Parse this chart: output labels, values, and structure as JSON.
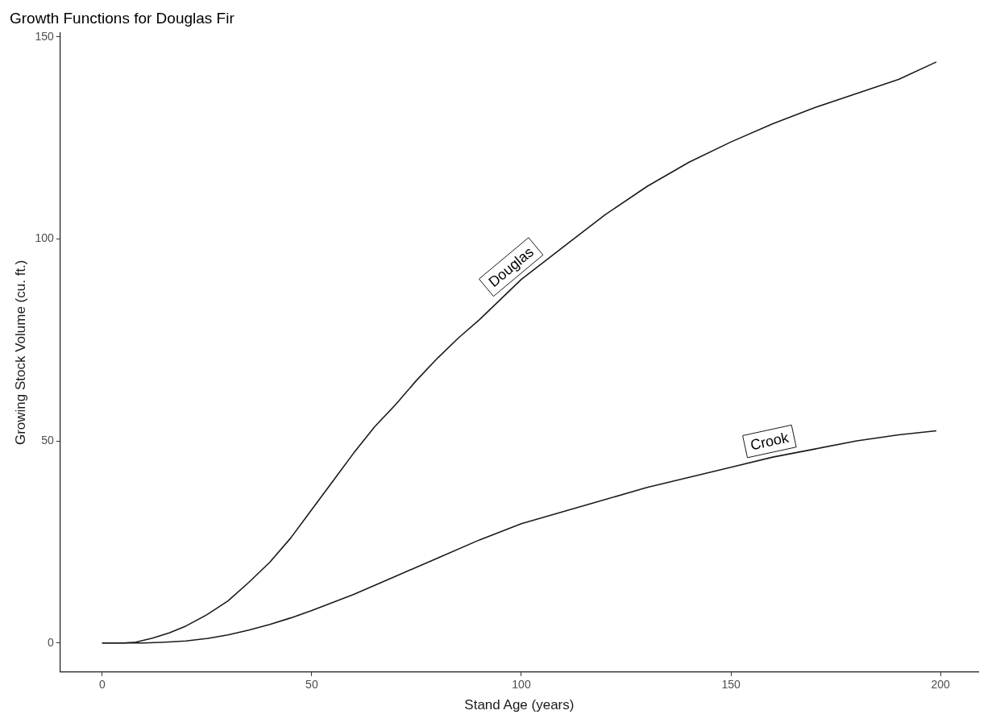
{
  "chart_data": {
    "type": "line",
    "title": "Growth Functions for Douglas Fir",
    "xlabel": "Stand Age (years)",
    "ylabel": "Growing Stock Volume (cu. ft.)",
    "xlim": [
      -10,
      209
    ],
    "ylim": [
      -7.2,
      151
    ],
    "xticks": [
      0,
      50,
      100,
      150,
      200
    ],
    "yticks": [
      0,
      50,
      100,
      150
    ],
    "grid": false,
    "legend": false,
    "marker": "none",
    "line_style": "solid",
    "series": [
      {
        "name": "Douglas",
        "color": "#1a1a1a",
        "x": [
          0,
          5,
          8,
          12,
          16,
          20,
          25,
          30,
          35,
          40,
          45,
          50,
          55,
          60,
          65,
          70,
          75,
          80,
          85,
          90,
          95,
          100,
          110,
          120,
          130,
          140,
          150,
          160,
          170,
          180,
          190,
          199
        ],
        "values": [
          0,
          0,
          0.2,
          1.2,
          2.5,
          4.2,
          7,
          10.4,
          15,
          20,
          26,
          33,
          40,
          47,
          53.5,
          59,
          65,
          70.5,
          75.5,
          80,
          85,
          90,
          98,
          106,
          113,
          119,
          124,
          128.5,
          132.5,
          136,
          139.5,
          143.8
        ]
      },
      {
        "name": "Crook",
        "color": "#1a1a1a",
        "x": [
          0,
          10,
          15,
          20,
          25,
          30,
          35,
          40,
          45,
          50,
          60,
          70,
          80,
          90,
          100,
          110,
          120,
          130,
          140,
          150,
          160,
          170,
          180,
          190,
          199
        ],
        "values": [
          0,
          0,
          0.2,
          0.5,
          1.1,
          2,
          3.2,
          4.6,
          6.2,
          8,
          12,
          16.5,
          21,
          25.5,
          29.5,
          32.5,
          35.5,
          38.5,
          41,
          43.5,
          46,
          48,
          50,
          51.5,
          52.5
        ]
      }
    ]
  }
}
